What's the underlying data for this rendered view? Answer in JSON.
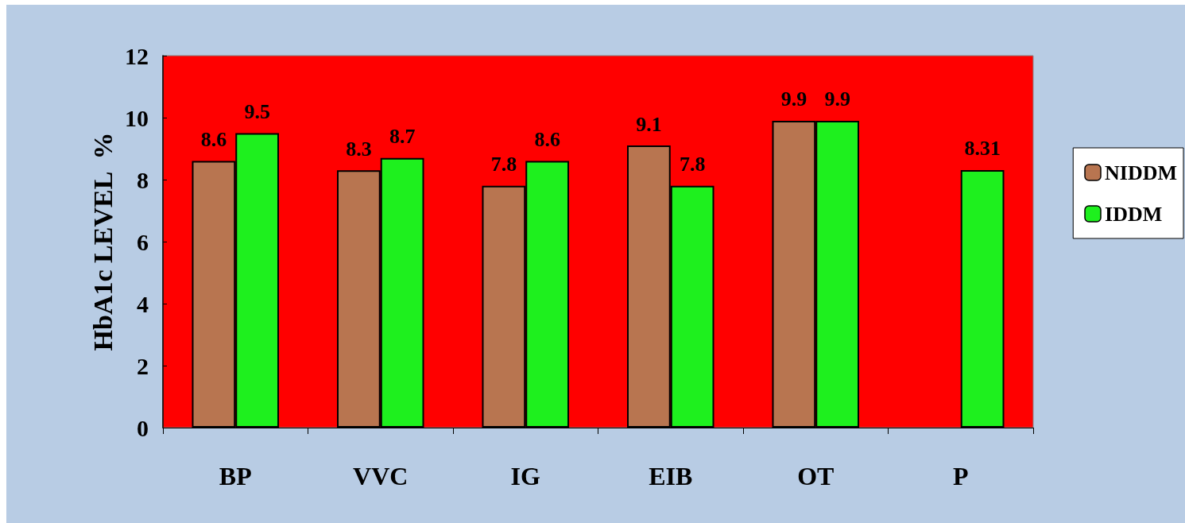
{
  "chart_data": {
    "type": "bar",
    "ylabel": "HbA1c LEVEL  %",
    "categories": [
      "BP",
      "VVC",
      "IG",
      "EIB",
      "OT",
      "P"
    ],
    "series": [
      {
        "name": "NIDDM",
        "color": "#b87550",
        "values": [
          8.6,
          8.3,
          7.8,
          9.1,
          9.9,
          null
        ]
      },
      {
        "name": "IDDM",
        "color": "#1ef01e",
        "values": [
          9.5,
          8.7,
          8.6,
          7.8,
          9.9,
          8.31
        ]
      }
    ],
    "ylim": [
      0,
      12
    ],
    "yticks": [
      0,
      2,
      4,
      6,
      8,
      10,
      12
    ],
    "grid": false,
    "legend": "right",
    "data_labels": true
  }
}
